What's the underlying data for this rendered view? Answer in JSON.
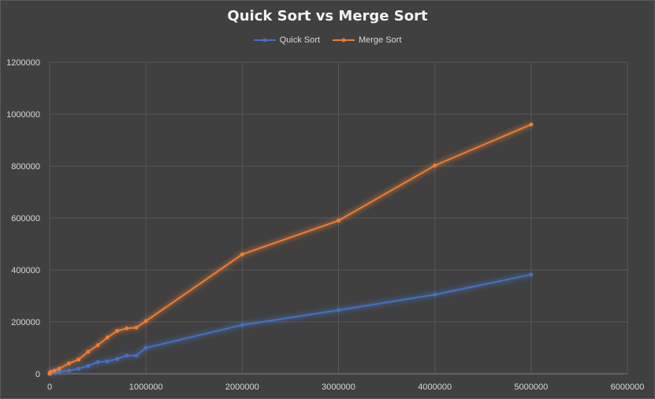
{
  "chart_data": {
    "type": "line",
    "title": "Quick Sort vs Merge Sort",
    "xlabel": "",
    "ylabel": "",
    "xlim": [
      0,
      6000000
    ],
    "ylim": [
      0,
      1200000
    ],
    "x_ticks": [
      "0",
      "1000000",
      "2000000",
      "3000000",
      "4000000",
      "5000000",
      "6000000"
    ],
    "y_ticks": [
      "0",
      "200000",
      "400000",
      "600000",
      "800000",
      "1000000",
      "1200000"
    ],
    "grid": true,
    "legend_position": "top",
    "series": [
      {
        "name": "Quick Sort",
        "color": "#4472c4",
        "points": [
          [
            0,
            0
          ],
          [
            1000,
            500
          ],
          [
            5000,
            1000
          ],
          [
            10000,
            1500
          ],
          [
            50000,
            4000
          ],
          [
            100000,
            8000
          ],
          [
            200000,
            12000
          ],
          [
            300000,
            20000
          ],
          [
            400000,
            30000
          ],
          [
            500000,
            45000
          ],
          [
            600000,
            48000
          ],
          [
            700000,
            57000
          ],
          [
            800000,
            70000
          ],
          [
            900000,
            70000
          ],
          [
            1000000,
            100000
          ],
          [
            2000000,
            188000
          ],
          [
            3000000,
            245000
          ],
          [
            4000000,
            305000
          ],
          [
            5000000,
            382000
          ]
        ]
      },
      {
        "name": "Merge Sort",
        "color": "#ed7d31",
        "points": [
          [
            0,
            0
          ],
          [
            1000,
            2000
          ],
          [
            5000,
            5000
          ],
          [
            10000,
            8000
          ],
          [
            50000,
            12000
          ],
          [
            100000,
            20000
          ],
          [
            200000,
            40000
          ],
          [
            300000,
            55000
          ],
          [
            400000,
            85000
          ],
          [
            500000,
            110000
          ],
          [
            600000,
            140000
          ],
          [
            700000,
            165000
          ],
          [
            800000,
            175000
          ],
          [
            900000,
            178000
          ],
          [
            1000000,
            203000
          ],
          [
            2000000,
            460000
          ],
          [
            3000000,
            590000
          ],
          [
            4000000,
            802000
          ],
          [
            5000000,
            960000
          ]
        ]
      }
    ]
  }
}
